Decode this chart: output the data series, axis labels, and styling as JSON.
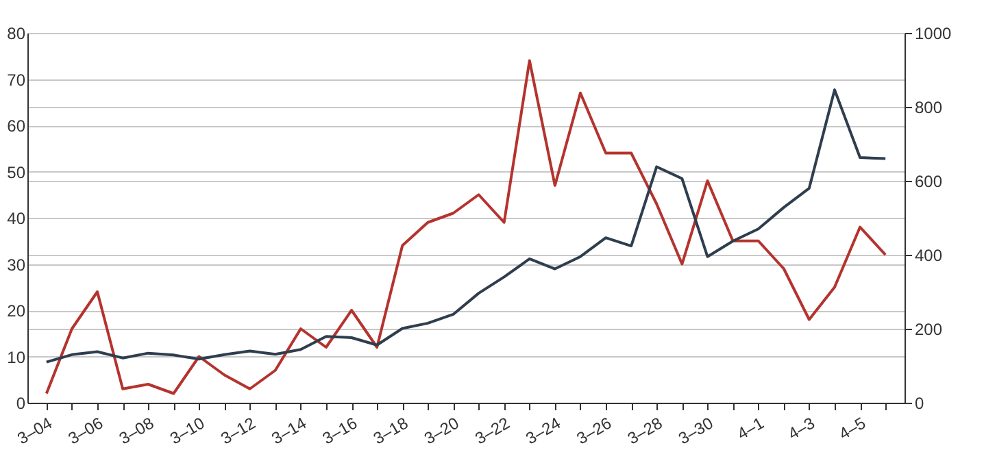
{
  "chart_data": {
    "type": "line",
    "categories": [
      "3–04",
      null,
      "3–06",
      null,
      "3–08",
      null,
      "3–10",
      null,
      "3–12",
      null,
      "3–14",
      null,
      "3–16",
      null,
      "3–18",
      null,
      "3–20",
      null,
      "3–22",
      null,
      "3–24",
      null,
      "3–26",
      null,
      "3–28",
      null,
      "3–30",
      null,
      "4–1",
      null,
      "4–3",
      null,
      "4–5",
      null
    ],
    "series": [
      {
        "color": "#b5332e",
        "values": [
          2,
          16,
          24,
          3,
          4,
          2,
          10,
          6,
          3,
          7,
          16,
          12,
          20,
          12,
          34,
          39,
          41,
          45,
          39,
          74,
          47,
          67,
          54,
          54,
          43,
          30,
          48,
          35,
          35,
          29,
          18,
          25,
          38,
          32
        ]
      },
      {
        "color": "#2f3e4e",
        "axis": "y2",
        "values": [
          110,
          130,
          138,
          121,
          134,
          129,
          118,
          130,
          140,
          131,
          144,
          179,
          176,
          156,
          201,
          215,
          239,
          296,
          340,
          389,
          362,
          395,
          446,
          424,
          638,
          606,
          395,
          437,
          470,
          528,
          580,
          846,
          663,
          660
        ]
      }
    ],
    "ylim": [
      0,
      80
    ],
    "yticks": [
      0,
      10,
      20,
      30,
      40,
      50,
      60,
      70,
      80
    ],
    "y2lim": [
      0,
      1000
    ],
    "y2ticks": [
      0,
      200,
      400,
      600,
      800,
      1000
    ],
    "grid": true,
    "line_style": "solid",
    "marker": "none"
  }
}
